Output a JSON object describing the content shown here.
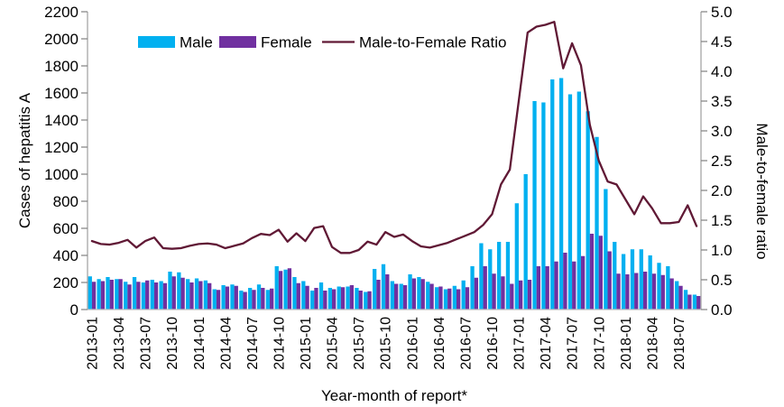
{
  "chart_data": {
    "type": "bar+line",
    "xlabel": "Year-month of report*",
    "left_axis": {
      "label": "Cases of hepatitis A",
      "min": 0,
      "max": 2200,
      "step": 200,
      "ticks": [
        "0",
        "200",
        "400",
        "600",
        "800",
        "1000",
        "1200",
        "1400",
        "1600",
        "1800",
        "2000",
        "2200"
      ]
    },
    "right_axis": {
      "label": "Male-to-female ratio",
      "min": 0.0,
      "max": 5.0,
      "step": 0.5,
      "ticks": [
        "0.0",
        "0.5",
        "1.0",
        "1.5",
        "2.0",
        "2.5",
        "3.0",
        "3.5",
        "4.0",
        "4.5",
        "5.0"
      ]
    },
    "x_tick_every": 3,
    "grid": false,
    "legend_position": "top",
    "months": [
      "2013-01",
      "2013-02",
      "2013-03",
      "2013-04",
      "2013-05",
      "2013-06",
      "2013-07",
      "2013-08",
      "2013-09",
      "2013-10",
      "2013-11",
      "2013-12",
      "2014-01",
      "2014-02",
      "2014-03",
      "2014-04",
      "2014-05",
      "2014-06",
      "2014-07",
      "2014-08",
      "2014-09",
      "2014-10",
      "2014-11",
      "2014-12",
      "2015-01",
      "2015-02",
      "2015-03",
      "2015-04",
      "2015-05",
      "2015-06",
      "2015-07",
      "2015-08",
      "2015-09",
      "2015-10",
      "2015-11",
      "2015-12",
      "2016-01",
      "2016-02",
      "2016-03",
      "2016-04",
      "2016-05",
      "2016-06",
      "2016-07",
      "2016-08",
      "2016-09",
      "2016-10",
      "2016-11",
      "2016-12",
      "2017-01",
      "2017-02",
      "2017-03",
      "2017-04",
      "2017-05",
      "2017-06",
      "2017-07",
      "2017-08",
      "2017-09",
      "2017-10",
      "2017-11",
      "2017-12",
      "2018-01",
      "2018-02",
      "2018-03",
      "2018-04",
      "2018-05",
      "2018-06",
      "2018-07",
      "2018-08",
      "2018-09"
    ],
    "series": [
      {
        "name": "Male",
        "type": "bar",
        "axis": "left",
        "color": "#00B0F0",
        "values": [
          245,
          225,
          240,
          225,
          205,
          240,
          200,
          220,
          210,
          280,
          275,
          225,
          230,
          215,
          150,
          180,
          185,
          140,
          160,
          185,
          145,
          320,
          295,
          240,
          210,
          140,
          200,
          160,
          170,
          170,
          160,
          130,
          300,
          335,
          210,
          190,
          260,
          240,
          205,
          165,
          150,
          175,
          215,
          320,
          490,
          445,
          500,
          500,
          785,
          1000,
          1540,
          1530,
          1700,
          1710,
          1590,
          1610,
          1465,
          1275,
          890,
          500,
          410,
          445,
          445,
          400,
          345,
          320,
          210,
          145,
          110
        ]
      },
      {
        "name": "Female",
        "type": "bar",
        "axis": "left",
        "color": "#7030A0",
        "values": [
          205,
          210,
          220,
          225,
          185,
          205,
          215,
          200,
          195,
          245,
          235,
          200,
          210,
          195,
          145,
          170,
          175,
          130,
          145,
          160,
          155,
          285,
          305,
          195,
          175,
          160,
          140,
          150,
          165,
          180,
          140,
          135,
          220,
          260,
          190,
          180,
          230,
          225,
          190,
          170,
          155,
          150,
          165,
          235,
          320,
          265,
          245,
          190,
          215,
          220,
          320,
          320,
          355,
          420,
          355,
          395,
          560,
          545,
          430,
          265,
          260,
          270,
          280,
          265,
          255,
          230,
          175,
          110,
          100
        ]
      },
      {
        "name": "Male-to-Female Ratio",
        "type": "line",
        "axis": "right",
        "color": "#601935",
        "values": [
          1.15,
          1.1,
          1.09,
          1.12,
          1.17,
          1.04,
          1.15,
          1.21,
          1.03,
          1.02,
          1.03,
          1.07,
          1.1,
          1.11,
          1.09,
          1.03,
          1.07,
          1.11,
          1.2,
          1.27,
          1.25,
          1.34,
          1.14,
          1.28,
          1.15,
          1.37,
          1.4,
          1.05,
          0.95,
          0.95,
          1.0,
          1.14,
          1.09,
          1.3,
          1.22,
          1.26,
          1.15,
          1.06,
          1.04,
          1.08,
          1.12,
          1.18,
          1.24,
          1.3,
          1.42,
          1.6,
          2.1,
          2.35,
          3.5,
          4.65,
          4.75,
          4.78,
          4.83,
          4.05,
          4.47,
          4.1,
          3.1,
          2.5,
          2.15,
          2.1,
          1.85,
          1.6,
          1.9,
          1.7,
          1.45,
          1.45,
          1.47,
          1.75,
          1.4
        ]
      }
    ],
    "legend": [
      "Male",
      "Female",
      "Male-to-Female Ratio"
    ],
    "axis_colors": {
      "axis_line": "#A6A6A6",
      "bottom_line": "#BFBFBF",
      "tick": "#808080",
      "text": "#000000"
    }
  }
}
